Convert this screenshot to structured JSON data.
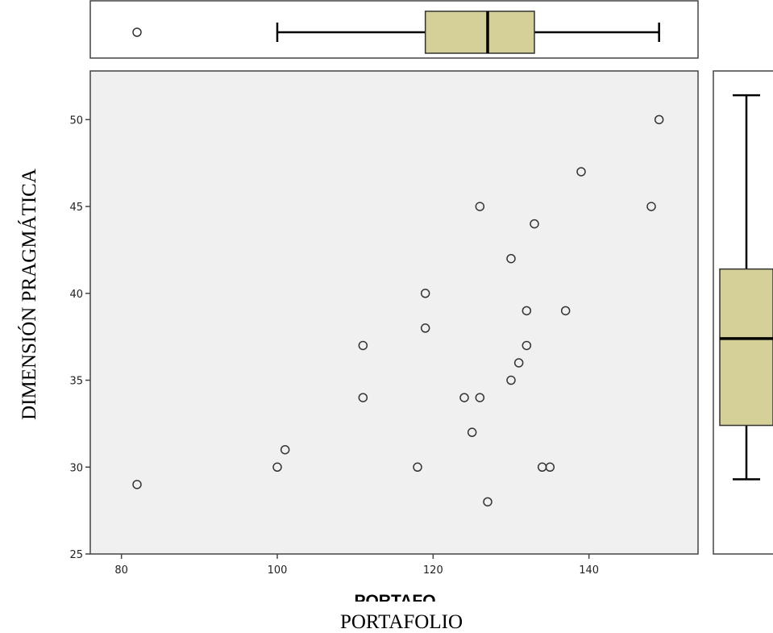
{
  "chart_data": {
    "type": "scatter",
    "xlabel": "PORTAFOLIO",
    "ylabel": "DIMENSIÓN PRAGMÁTICA",
    "overlapped_label": "PORTAFO",
    "xlim": [
      76,
      154
    ],
    "ylim": [
      25,
      52.8
    ],
    "xticks": [
      "80",
      "100",
      "120",
      "140"
    ],
    "yticks": [
      "25",
      "30",
      "35",
      "40",
      "45",
      "50"
    ],
    "grid": false,
    "points": [
      {
        "x": 82,
        "y": 29
      },
      {
        "x": 100,
        "y": 30
      },
      {
        "x": 101,
        "y": 31
      },
      {
        "x": 111,
        "y": 37
      },
      {
        "x": 111,
        "y": 34
      },
      {
        "x": 118,
        "y": 30
      },
      {
        "x": 119,
        "y": 40
      },
      {
        "x": 119,
        "y": 38
      },
      {
        "x": 124,
        "y": 34
      },
      {
        "x": 125,
        "y": 32
      },
      {
        "x": 126,
        "y": 45
      },
      {
        "x": 126,
        "y": 34
      },
      {
        "x": 127,
        "y": 28
      },
      {
        "x": 130,
        "y": 42
      },
      {
        "x": 130,
        "y": 35
      },
      {
        "x": 131,
        "y": 36
      },
      {
        "x": 132,
        "y": 39
      },
      {
        "x": 132,
        "y": 37
      },
      {
        "x": 133,
        "y": 44
      },
      {
        "x": 134,
        "y": 30
      },
      {
        "x": 135,
        "y": 30
      },
      {
        "x": 137,
        "y": 39
      },
      {
        "x": 139,
        "y": 47
      },
      {
        "x": 148,
        "y": 45
      },
      {
        "x": 149,
        "y": 50
      }
    ],
    "x_boxplot": {
      "min": 100,
      "q1": 119,
      "median": 127,
      "q3": 133,
      "max": 149,
      "outliers": [
        82
      ]
    },
    "y_boxplot": {
      "min": 29.3,
      "q1": 32.4,
      "median": 37.4,
      "q3": 41.4,
      "max": 51.4,
      "outliers": []
    },
    "colors": {
      "plot_background": "#f0f0f0",
      "box_fill": "#d5cf98",
      "frame": "#444444",
      "marker_stroke": "#333333"
    }
  }
}
